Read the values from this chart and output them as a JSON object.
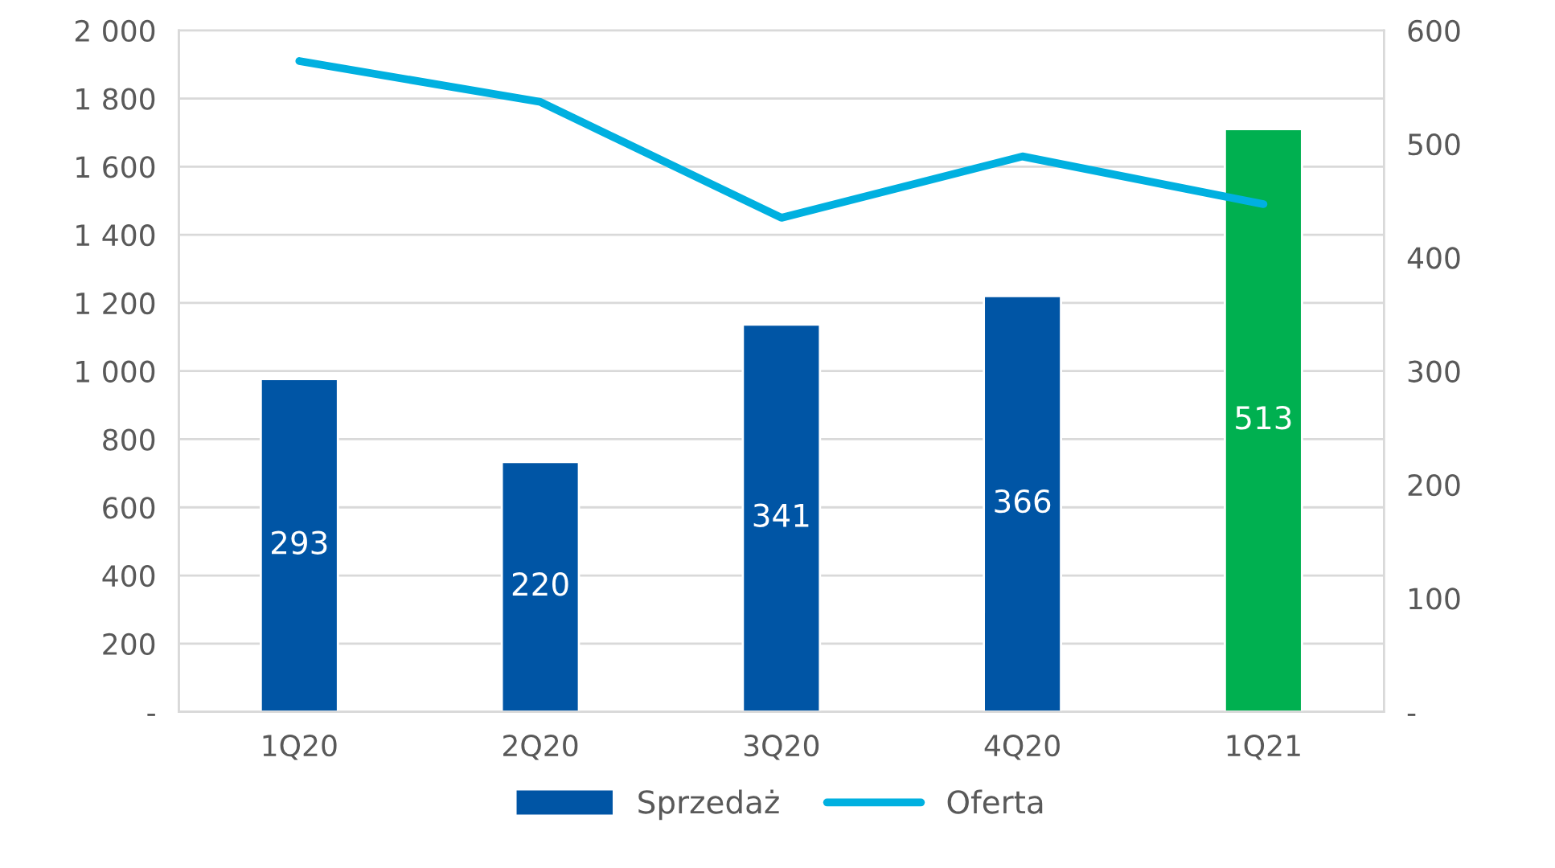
{
  "chart_data": {
    "type": "bar",
    "categories": [
      "1Q20",
      "2Q20",
      "3Q20",
      "4Q20",
      "1Q21"
    ],
    "series": [
      {
        "name": "Sprzedaż",
        "axis": "y2",
        "colors": [
          "#0055a5",
          "#0055a5",
          "#0055a5",
          "#0055a5",
          "#00b050"
        ],
        "color": "#0055a5",
        "values": [
          293,
          220,
          341,
          366,
          513
        ],
        "data_labels": true
      },
      {
        "name": "Oferta",
        "type": "line",
        "color": "#00b0e0",
        "values": [
          1910,
          1790,
          1450,
          1630,
          1490
        ],
        "marker": "none",
        "line_style": "solid"
      }
    ],
    "ylim": [
      0,
      2000
    ],
    "yticks": [
      {
        "value": 0,
        "label": "-"
      },
      {
        "value": 200,
        "label": "200"
      },
      {
        "value": 400,
        "label": "400"
      },
      {
        "value": 600,
        "label": "600"
      },
      {
        "value": 800,
        "label": "800"
      },
      {
        "value": 1000,
        "label": "1 000"
      },
      {
        "value": 1200,
        "label": "1 200"
      },
      {
        "value": 1400,
        "label": "1 400"
      },
      {
        "value": 1600,
        "label": "1 600"
      },
      {
        "value": 1800,
        "label": "1 800"
      },
      {
        "value": 2000,
        "label": "2 000"
      }
    ],
    "y2lim": [
      0,
      600
    ],
    "y2ticks": [
      {
        "value": 0,
        "label": "-"
      },
      100,
      200,
      300,
      400,
      500,
      600
    ],
    "grid": "y",
    "legend": "bottom"
  }
}
